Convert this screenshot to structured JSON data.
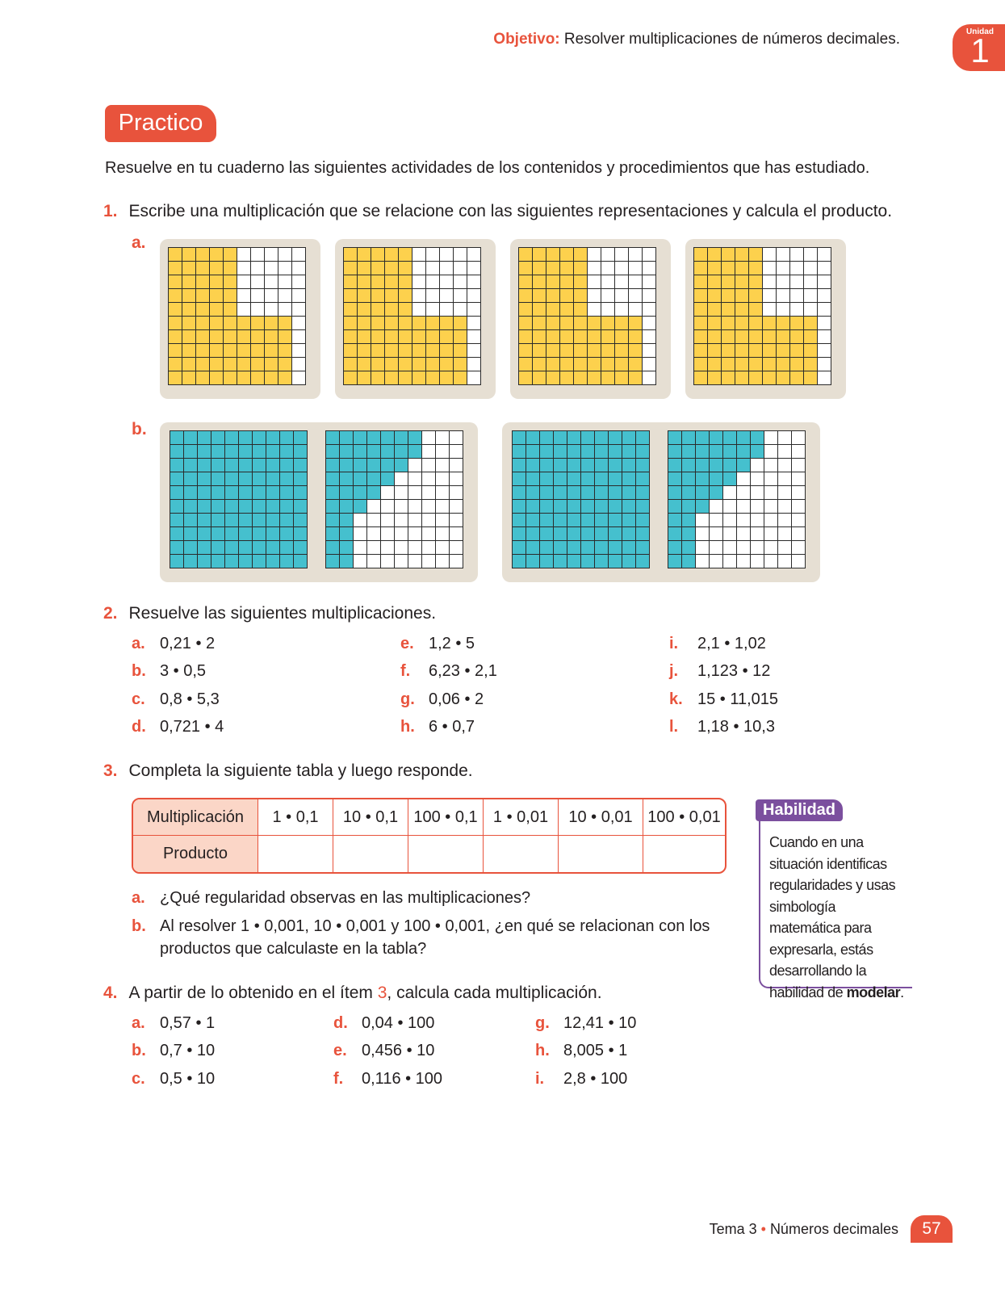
{
  "header": {
    "objective_label": "Objetivo:",
    "objective_text": "Resolver multiplicaciones de números decimales.",
    "unit_label": "Unidad",
    "unit_number": "1"
  },
  "section_title": "Practico",
  "intro": "Resuelve en tu cuaderno las siguientes actividades de los contenidos y procedimientos que has estudiado.",
  "q1": {
    "number": "1.",
    "text": "Escribe una multiplicación que se relacione con las siguientes representaciones y calcula el producto.",
    "a_label": "a.",
    "b_label": "b.",
    "a_fill_color": "#fdd14d",
    "b_fill_color": "#45c0ce"
  },
  "q2": {
    "number": "2.",
    "text": "Resuelve las siguientes multiplicaciones.",
    "items": [
      {
        "letter": "a.",
        "expr": "0,21 • 2"
      },
      {
        "letter": "b.",
        "expr": "3 • 0,5"
      },
      {
        "letter": "c.",
        "expr": "0,8 • 5,3"
      },
      {
        "letter": "d.",
        "expr": "0,721 • 4"
      },
      {
        "letter": "e.",
        "expr": "1,2 • 5"
      },
      {
        "letter": "f.",
        "expr": "6,23 • 2,1"
      },
      {
        "letter": "g.",
        "expr": "0,06 • 2"
      },
      {
        "letter": "h.",
        "expr": "6 • 0,7"
      },
      {
        "letter": "i.",
        "expr": "2,1 • 1,02"
      },
      {
        "letter": "j.",
        "expr": "1,123 • 12"
      },
      {
        "letter": "k.",
        "expr": "15 • 11,015"
      },
      {
        "letter": "l.",
        "expr": "1,18 • 10,3"
      }
    ]
  },
  "q3": {
    "number": "3.",
    "text": "Completa la siguiente tabla y luego responde.",
    "table": {
      "row1_header": "Multiplicación",
      "row2_header": "Producto",
      "columns": [
        "1 • 0,1",
        "10 • 0,1",
        "100 • 0,1",
        "1 • 0,01",
        "10 • 0,01",
        "100 • 0,01"
      ]
    },
    "a_letter": "a.",
    "a_text": "¿Qué regularidad observas en las multiplicaciones?",
    "b_letter": "b.",
    "b_text_line1": "Al resolver 1 • 0,001, 10 • 0,001 y 100 • 0,001, ¿en qué se relacionan con los",
    "b_text_line2": "productos que calculaste en la tabla?"
  },
  "habilidad": {
    "title": "Habilidad",
    "text": "Cuando en una situación identificas regularidades y usas simbología matemática para expresarla, estás desarrollando la habilidad de ",
    "bold": "modelar",
    "end": "."
  },
  "q4": {
    "number": "4.",
    "text_before": "A partir de lo obtenido en el ítem ",
    "ref": "3",
    "text_after": ", calcula cada multiplicación.",
    "items": [
      {
        "letter": "a.",
        "expr": "0,57 • 1"
      },
      {
        "letter": "b.",
        "expr": "0,7 • 10"
      },
      {
        "letter": "c.",
        "expr": "0,5 • 10"
      },
      {
        "letter": "d.",
        "expr": "0,04 • 100"
      },
      {
        "letter": "e.",
        "expr": "0,456 • 10"
      },
      {
        "letter": "f.",
        "expr": "0,116 • 100"
      },
      {
        "letter": "g.",
        "expr": "12,41 • 10"
      },
      {
        "letter": "h.",
        "expr": "8,005 • 1"
      },
      {
        "letter": "i.",
        "expr": "2,8 • 100"
      }
    ]
  },
  "footer": {
    "topic": "Tema 3",
    "separator": "•",
    "title": "Números decimales",
    "page": "57"
  }
}
